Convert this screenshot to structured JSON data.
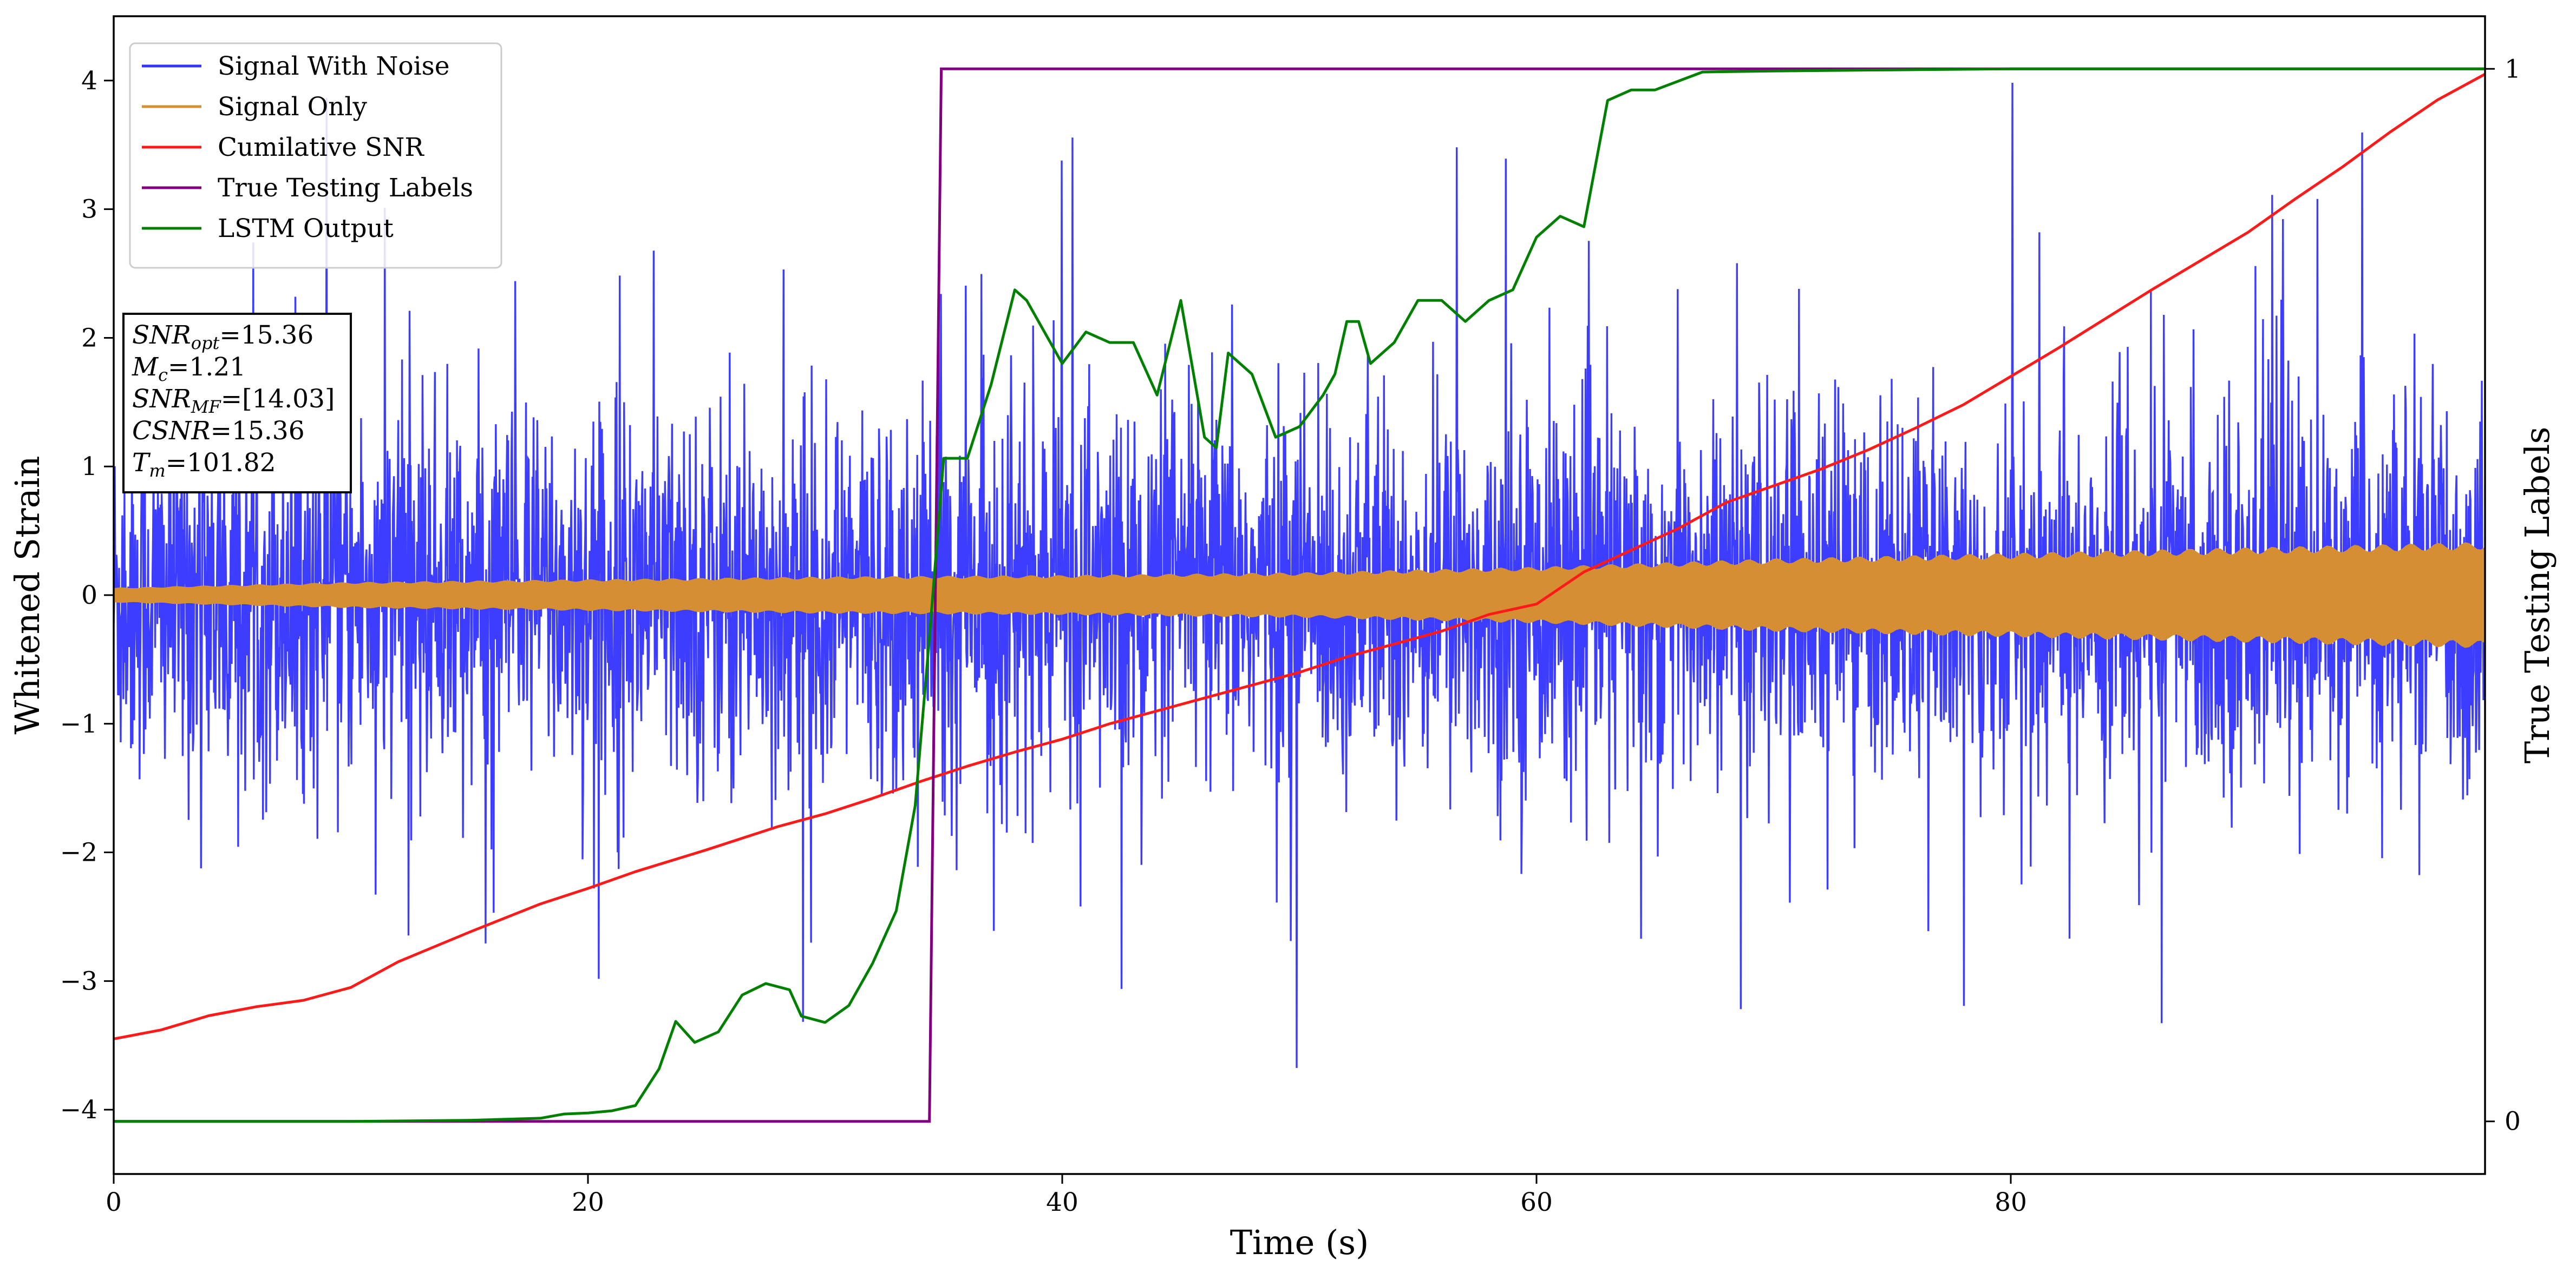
{
  "chart_data": {
    "type": "line",
    "xlabel": "Time (s)",
    "ylabel": "Whitened Strain",
    "y2label": "True Testing Labels",
    "xlim": [
      0,
      100
    ],
    "ylim": [
      -4.5,
      4.5
    ],
    "y2lim": [
      -0.05,
      1.05
    ],
    "xticks": [
      0,
      20,
      40,
      60,
      80
    ],
    "yticks": [
      -4,
      -3,
      -2,
      -1,
      0,
      1,
      2,
      3,
      4
    ],
    "y2ticks": [
      0,
      1
    ],
    "tick_labels": {
      "x": [
        "0",
        "20",
        "40",
        "60",
        "80"
      ],
      "y": [
        "−4",
        "−3",
        "−2",
        "−1",
        "0",
        "1",
        "2",
        "3",
        "4"
      ],
      "y2": [
        "0",
        "1"
      ]
    },
    "legend_position": "upper-left",
    "series": [
      {
        "name": "Signal With Noise",
        "color": "#3333ff",
        "axis": "left",
        "style": "dense noise trace",
        "envelope": {
          "typical_range": [
            -1.7,
            1.6
          ],
          "min": -3.9,
          "max": 4.1
        }
      },
      {
        "name": "Signal Only",
        "color": "#d58f32",
        "axis": "left",
        "style": "oscillating band",
        "amplitude": {
          "x": [
            0,
            10,
            20,
            30,
            40,
            50,
            60,
            70,
            80,
            90,
            100
          ],
          "amp": [
            0.05,
            0.09,
            0.11,
            0.13,
            0.14,
            0.16,
            0.2,
            0.26,
            0.3,
            0.34,
            0.38
          ]
        }
      },
      {
        "name": "Cumilative SNR",
        "color": "#ff1a1a",
        "axis": "left",
        "x": [
          0,
          2,
          4,
          6,
          8,
          10,
          12,
          15,
          18,
          20,
          22,
          25,
          28,
          30,
          32,
          34,
          36,
          38,
          40,
          42,
          45,
          48,
          50,
          52,
          54,
          56,
          58,
          60,
          62,
          64,
          66,
          68,
          70,
          72,
          74,
          76,
          78,
          80,
          82,
          84,
          86,
          88,
          90,
          92,
          94,
          96,
          98,
          100
        ],
        "values": [
          -3.45,
          -3.38,
          -3.27,
          -3.2,
          -3.15,
          -3.05,
          -2.85,
          -2.62,
          -2.4,
          -2.28,
          -2.15,
          -1.98,
          -1.8,
          -1.7,
          -1.58,
          -1.45,
          -1.33,
          -1.22,
          -1.12,
          -1.0,
          -0.85,
          -0.7,
          -0.6,
          -0.48,
          -0.38,
          -0.28,
          -0.15,
          -0.07,
          0.18,
          0.35,
          0.52,
          0.72,
          0.85,
          0.98,
          1.13,
          1.3,
          1.48,
          1.7,
          1.92,
          2.15,
          2.38,
          2.6,
          2.82,
          3.08,
          3.33,
          3.6,
          3.85,
          4.05
        ]
      },
      {
        "name": "True Testing Labels",
        "color": "#800080",
        "axis": "right",
        "x": [
          0,
          34.4,
          34.9,
          100
        ],
        "values": [
          0,
          0,
          1,
          1
        ]
      },
      {
        "name": "LSTM Output",
        "color": "#008000",
        "axis": "right",
        "x": [
          0,
          10,
          15,
          18,
          19,
          20,
          21,
          22,
          23,
          23.7,
          24.5,
          25.5,
          26.5,
          27.5,
          28.5,
          29,
          30,
          31,
          32,
          33,
          33.8,
          34.4,
          35,
          36,
          37,
          38,
          38.5,
          40,
          41,
          42,
          43,
          44,
          45,
          46,
          46.5,
          47,
          48,
          49,
          50,
          51,
          51.5,
          52,
          52.5,
          53,
          54,
          55,
          56,
          57,
          58,
          59,
          60,
          61,
          62,
          63,
          64,
          65,
          67,
          70,
          75,
          80,
          100
        ],
        "values": [
          0,
          0,
          0.001,
          0.003,
          0.007,
          0.008,
          0.01,
          0.015,
          0.05,
          0.095,
          0.075,
          0.085,
          0.12,
          0.131,
          0.125,
          0.1,
          0.094,
          0.11,
          0.15,
          0.2,
          0.3,
          0.46,
          0.63,
          0.63,
          0.7,
          0.79,
          0.78,
          0.72,
          0.75,
          0.74,
          0.74,
          0.69,
          0.78,
          0.65,
          0.64,
          0.73,
          0.71,
          0.65,
          0.66,
          0.69,
          0.71,
          0.76,
          0.76,
          0.72,
          0.74,
          0.78,
          0.78,
          0.76,
          0.78,
          0.79,
          0.84,
          0.86,
          0.85,
          0.97,
          0.98,
          0.98,
          0.997,
          0.998,
          0.999,
          1.0,
          1.0
        ]
      }
    ],
    "legend": [
      "Signal With Noise",
      "Signal Only",
      "Cumilative SNR",
      "True Testing Labels",
      "LSTM Output"
    ],
    "annotation": {
      "position": "upper-left",
      "lines": [
        {
          "var": "SNR",
          "sub": "opt",
          "text": "=15.36"
        },
        {
          "var": "M",
          "sub": "c",
          "text": "=1.21"
        },
        {
          "var": "SNR",
          "sub": "MF",
          "text": "=[14.03]"
        },
        {
          "var": "CSNR",
          "sub": "",
          "text": "=15.36"
        },
        {
          "var": "T",
          "sub": "m",
          "text": "=101.82"
        }
      ]
    }
  }
}
